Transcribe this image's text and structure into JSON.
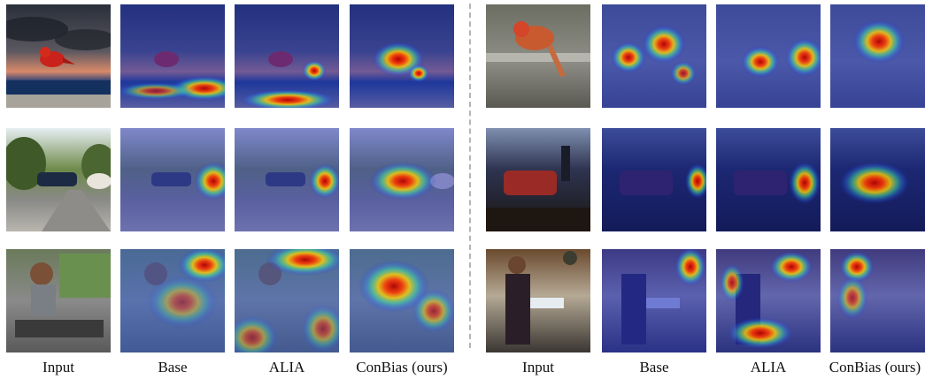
{
  "labels": {
    "left": [
      "Input",
      "Base",
      "ALIA",
      "ConBias (ours)"
    ],
    "right": [
      "Input",
      "Base",
      "ALIA",
      "ConBias (ours)"
    ]
  }
}
